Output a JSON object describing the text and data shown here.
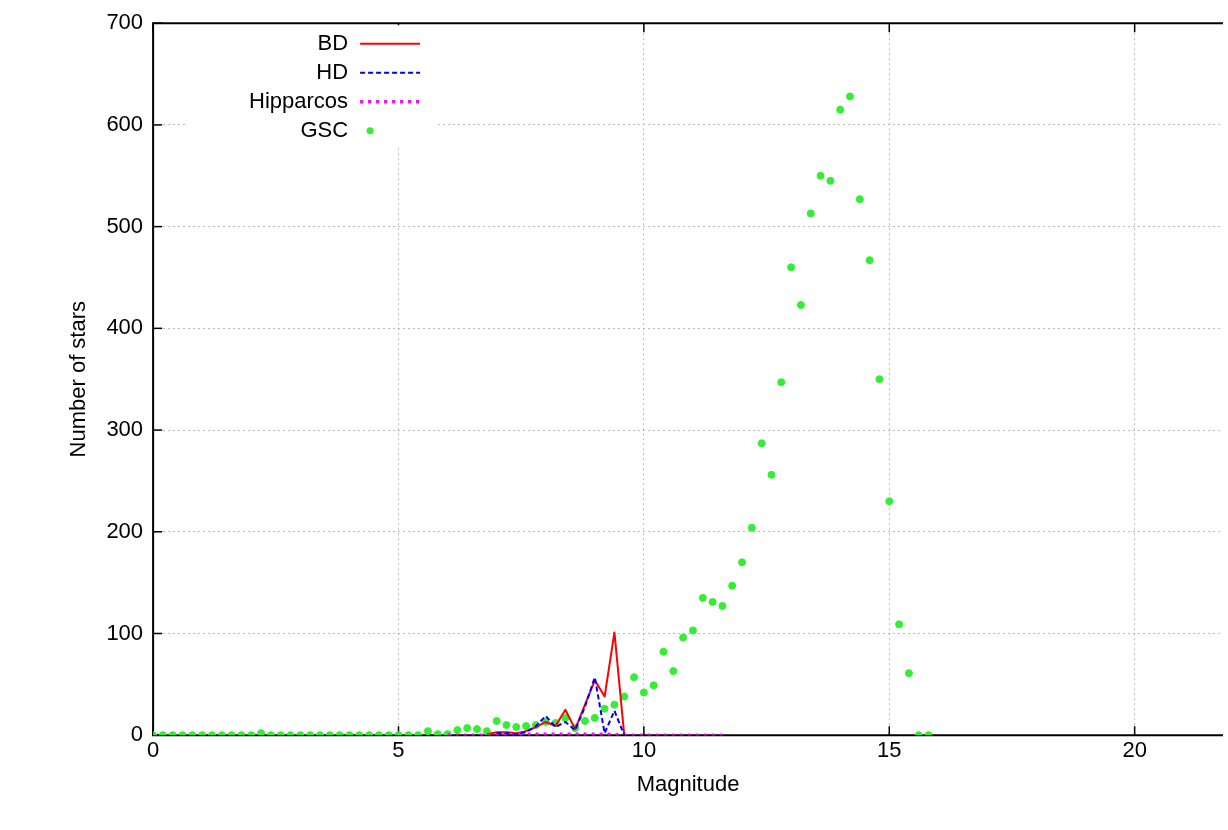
{
  "chart_data": {
    "type": "line",
    "xlabel": "Magnitude",
    "ylabel": "Number of stars",
    "xlim": [
      0,
      21.8
    ],
    "xticks": [
      0,
      5,
      10,
      15,
      20
    ],
    "ylim": [
      0,
      700
    ],
    "yticks": [
      0,
      100,
      200,
      300,
      400,
      500,
      600,
      700
    ],
    "grid": true,
    "legend": "top left",
    "series": [
      {
        "name": "BD",
        "color": "#ff0000",
        "line_style": "solid",
        "marker": "none",
        "x": [
          6.8,
          7.0,
          7.2,
          7.4,
          7.6,
          7.8,
          8.0,
          8.2,
          8.4,
          8.6,
          8.8,
          9.0,
          9.2,
          9.4,
          9.6
        ],
        "values": [
          1,
          3,
          3,
          2,
          4,
          8,
          13,
          9,
          25,
          6,
          30,
          54,
          38,
          101,
          0
        ]
      },
      {
        "name": "HD",
        "color": "#0000ff",
        "line_style": "dashed",
        "marker": "none",
        "x": [
          7.0,
          7.2,
          7.4,
          7.6,
          7.8,
          8.0,
          8.2,
          8.4,
          8.6,
          8.8,
          9.0,
          9.2,
          9.4,
          9.6
        ],
        "values": [
          2,
          2,
          1,
          3,
          9,
          19,
          8,
          13,
          5,
          28,
          57,
          2,
          24,
          0
        ]
      },
      {
        "name": "Hipparcos",
        "color": "#ff00ff",
        "line_style": "dotted",
        "marker": "none",
        "x": [
          6.0,
          6.4,
          6.8,
          7.2,
          7.6,
          8.0,
          8.4,
          8.8,
          9.2,
          9.6,
          10.0,
          10.4,
          10.8,
          11.2,
          11.6
        ],
        "values": [
          0,
          0,
          0,
          1,
          1,
          1,
          1,
          1,
          1,
          0,
          0,
          0,
          0,
          0,
          0
        ]
      },
      {
        "name": "GSC",
        "color": "#33ee33",
        "type": "scatter",
        "marker": "circle",
        "x": [
          0,
          0.2,
          0.4,
          0.6,
          0.8,
          1.0,
          1.2,
          1.4,
          1.6,
          1.8,
          2.0,
          2.2,
          2.4,
          2.6,
          2.8,
          3.0,
          3.2,
          3.4,
          3.6,
          3.8,
          4.0,
          4.2,
          4.4,
          4.6,
          4.8,
          5.0,
          5.2,
          5.4,
          5.6,
          5.8,
          6.0,
          6.2,
          6.4,
          6.6,
          6.8,
          7.0,
          7.2,
          7.4,
          7.6,
          7.8,
          8.0,
          8.2,
          8.4,
          8.6,
          8.8,
          9.0,
          9.2,
          9.4,
          9.6,
          9.8,
          10.0,
          10.2,
          10.4,
          10.6,
          10.8,
          11.0,
          11.2,
          11.4,
          11.6,
          11.8,
          12.0,
          12.2,
          12.4,
          12.6,
          12.8,
          13.0,
          13.2,
          13.4,
          13.6,
          13.8,
          14.0,
          14.2,
          14.4,
          14.6,
          14.8,
          15.0,
          15.2,
          15.4,
          15.6,
          15.8
        ],
        "values": [
          0,
          0,
          0,
          0,
          0,
          0,
          0,
          0,
          0,
          0,
          0,
          2,
          0,
          0,
          0,
          0,
          0,
          0,
          0,
          0,
          0,
          0,
          0,
          0,
          0,
          0,
          0,
          0,
          4,
          1,
          1,
          5,
          7,
          6,
          4,
          14,
          10,
          8,
          9,
          10,
          13,
          12,
          17,
          7,
          14,
          17,
          26,
          30,
          38,
          57,
          42,
          49,
          82,
          63,
          96,
          103,
          135,
          131,
          127,
          147,
          170,
          204,
          287,
          256,
          347,
          460,
          423,
          513,
          550,
          545,
          615,
          628,
          527,
          467,
          350,
          230,
          109,
          61,
          0,
          0
        ]
      }
    ]
  }
}
